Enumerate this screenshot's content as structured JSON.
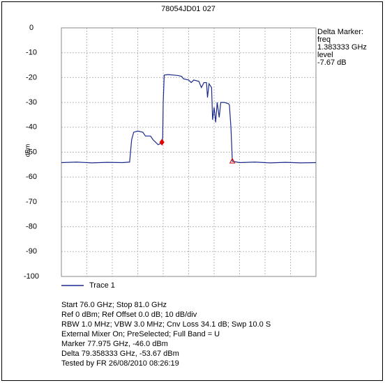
{
  "chart_data": {
    "type": "line",
    "title": "78054JD01 027",
    "ylabel": "dBm",
    "xlim": [
      76.0,
      81.0
    ],
    "ylim": [
      -100,
      0
    ],
    "yticks": [
      0,
      -10,
      -20,
      -30,
      -40,
      -50,
      -60,
      -70,
      -80,
      -90,
      -100
    ],
    "grid": true,
    "series": [
      {
        "name": "Trace 1",
        "color": "#1a2a8c",
        "x": [
          76.0,
          76.3,
          76.6,
          76.9,
          77.2,
          77.34,
          77.38,
          77.42,
          77.5,
          77.6,
          77.65,
          77.75,
          77.8,
          77.85,
          77.9,
          77.95,
          77.975,
          77.99,
          78.0,
          78.02,
          78.1,
          78.2,
          78.3,
          78.36,
          78.4,
          78.5,
          78.55,
          78.6,
          78.7,
          78.75,
          78.8,
          78.85,
          78.87,
          78.9,
          78.95,
          78.97,
          79.0,
          79.03,
          79.06,
          79.1,
          79.13,
          79.2,
          79.28,
          79.3,
          79.33,
          79.358,
          79.5,
          79.8,
          80.1,
          80.4,
          80.7,
          81.0
        ],
        "values": [
          -54.2,
          -54.0,
          -54.3,
          -54.1,
          -54.2,
          -54.0,
          -45,
          -42,
          -41.5,
          -42,
          -43.5,
          -43.5,
          -45,
          -46,
          -47,
          -46.5,
          -46.0,
          -44,
          -30,
          -19,
          -18.8,
          -19,
          -19.2,
          -19.5,
          -20.5,
          -21,
          -22,
          -21,
          -21.5,
          -24,
          -22,
          -22,
          -28,
          -22.5,
          -24,
          -37,
          -32,
          -38,
          -30,
          -36,
          -30,
          -30,
          -30.5,
          -31,
          -40,
          -53.67,
          -54.2,
          -54.0,
          -54.3,
          -54.1,
          -54.3,
          -54.2
        ]
      }
    ],
    "markers": [
      {
        "x": 77.975,
        "y": -46.0,
        "color": "#e00000",
        "shape": "diamond"
      },
      {
        "x": 79.358333,
        "y": -53.67,
        "color": "#e00000",
        "shape": "triangle"
      }
    ],
    "annotation": [
      "Delta Marker:",
      "freq",
      "1.383333 GHz",
      "level",
      "-7.67  dB"
    ],
    "notes": [
      "Start 76.0 GHz; Stop 81.0 GHz",
      "Ref 0 dBm; Ref Offset 0.0 dB; 10 dB/div",
      "RBW 1.0 MHz; VBW 3.0 MHz; Cnv Loss 34.1 dB; Swp 10.0 S",
      "External Mixer On; PreSelected; Full Band = U",
      "Marker 77.975 GHz, -46.0 dBm",
      "Delta 79.358333 GHz, -53.67 dBm",
      "Tested by FR 26/08/2010 08:26:19"
    ]
  }
}
